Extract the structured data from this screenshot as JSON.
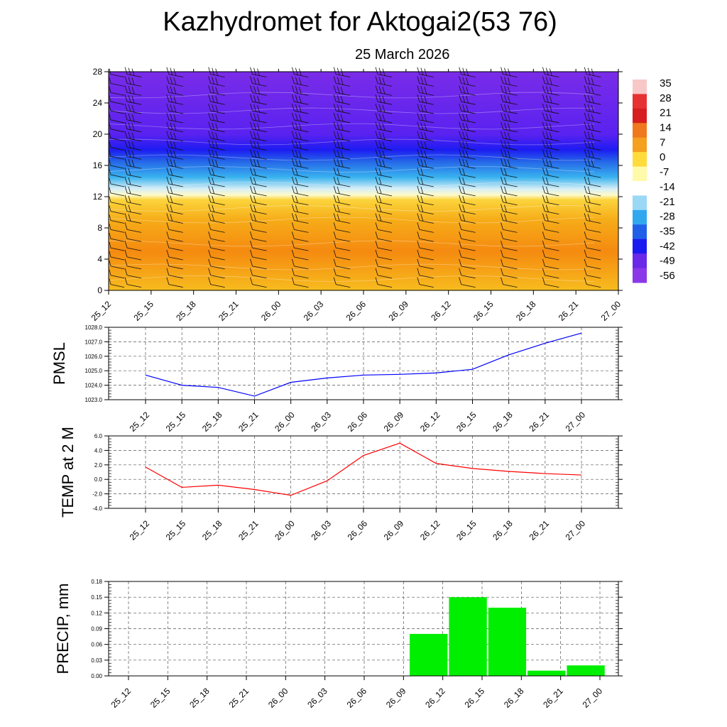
{
  "title": "Kazhydromet for Aktogai2(53 76)",
  "date": "25 March 2026",
  "time_labels": [
    "25_12",
    "25_15",
    "25_18",
    "25_21",
    "26_00",
    "26_03",
    "26_06",
    "26_09",
    "26_12",
    "26_15",
    "26_18",
    "26_21",
    "27_00"
  ],
  "chart_data": [
    {
      "type": "heatmap",
      "name": "cross-section",
      "y_ticks": [
        0,
        4,
        8,
        12,
        16,
        20,
        24,
        28
      ],
      "ylim": [
        0,
        28
      ],
      "colorbar_labels": [
        "35",
        "28",
        "21",
        "14",
        "7",
        "0",
        "-7",
        "-14",
        "-21",
        "-28",
        "-35",
        "-42",
        "-49",
        "-56"
      ],
      "band_stops": [
        {
          "level": 0,
          "color": "#f7bc1e"
        },
        {
          "level": 5,
          "color": "#f58a10"
        },
        {
          "level": 9,
          "color": "#f6ac18"
        },
        {
          "level": 11.6,
          "color": "#fbd43c"
        },
        {
          "level": 12.2,
          "color": "#fefac8"
        },
        {
          "level": 13,
          "color": "#d6eef6"
        },
        {
          "level": 14.5,
          "color": "#38b2ef"
        },
        {
          "level": 16.5,
          "color": "#2566e8"
        },
        {
          "level": 18,
          "color": "#1d1cf2"
        },
        {
          "level": 20,
          "color": "#5a22f0"
        },
        {
          "level": 28,
          "color": "#7a2ce8"
        }
      ],
      "colorbar_colors": [
        "#f8c8c8",
        "#e63232",
        "#d71e1e",
        "#f0781e",
        "#f5a01e",
        "#ffdc3c",
        "#fffaaa",
        "#ffffff",
        "#9ad8f6",
        "#30a8f0",
        "#2060e8",
        "#1a1af0",
        "#6a28e8",
        "#8a38e8"
      ]
    },
    {
      "type": "line",
      "ylabel": "PMSL",
      "x": [
        "25_12",
        "25_15",
        "25_18",
        "25_21",
        "26_00",
        "26_03",
        "26_06",
        "26_09",
        "26_12",
        "26_15",
        "26_18",
        "26_21",
        "27_00"
      ],
      "values": [
        1024.7,
        1024.0,
        1023.85,
        1023.25,
        1024.2,
        1024.5,
        1024.7,
        1024.75,
        1024.85,
        1025.1,
        1026.1,
        1026.9,
        1027.6
      ],
      "ylim": [
        1023.0,
        1028.0
      ],
      "y_ticks": [
        "1023.0",
        "1024.0",
        "1025.0",
        "1026.0",
        "1027.0",
        "1028.0"
      ],
      "color": "#0000ff"
    },
    {
      "type": "line",
      "ylabel": "TEMP at 2 M",
      "x": [
        "25_12",
        "25_15",
        "25_18",
        "25_21",
        "26_00",
        "26_03",
        "26_06",
        "26_09",
        "26_12",
        "26_15",
        "26_18",
        "26_21",
        "27_00"
      ],
      "values": [
        1.7,
        -1.1,
        -0.8,
        -1.4,
        -2.2,
        -0.2,
        3.3,
        5.0,
        2.2,
        1.5,
        1.1,
        0.8,
        0.6
      ],
      "ylim": [
        -4.0,
        6.0
      ],
      "y_ticks": [
        "-4.0",
        "-2.0",
        "0.0",
        "2.0",
        "4.0",
        "6.0"
      ],
      "color": "#ff0000"
    },
    {
      "type": "bar",
      "ylabel": "PRECIP, mm",
      "categories": [
        "25_12",
        "25_15",
        "25_18",
        "25_21",
        "26_00",
        "26_03",
        "26_06",
        "26_09",
        "26_12",
        "26_15",
        "26_18",
        "26_21",
        "27_00"
      ],
      "values": [
        0,
        0,
        0,
        0,
        0,
        0,
        0,
        0,
        0.08,
        0.15,
        0.13,
        0.01,
        0.02
      ],
      "ylim": [
        0,
        0.18
      ],
      "y_ticks": [
        "0.00",
        "0.03",
        "0.06",
        "0.09",
        "0.12",
        "0.15",
        "0.18"
      ],
      "color": "#00ee00"
    }
  ]
}
